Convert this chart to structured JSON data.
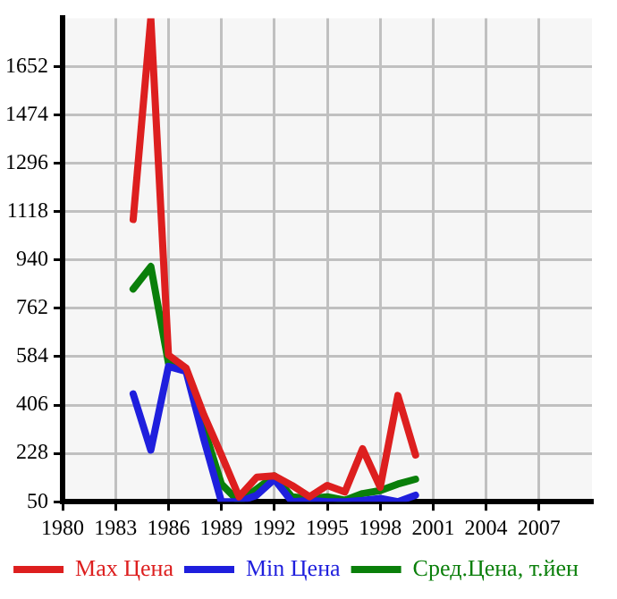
{
  "chart_data": {
    "type": "line",
    "x": [
      1984,
      1985,
      1986,
      1987,
      1988,
      1989,
      1990,
      1991,
      1992,
      1993,
      1994,
      1995,
      1996,
      1997,
      1998,
      1999,
      2000
    ],
    "series": [
      {
        "name": "Max Цена",
        "color": "#dd1f1f",
        "values": [
          1089,
          1830,
          590,
          542,
          370,
          222,
          68,
          140,
          145,
          110,
          68,
          110,
          86,
          245,
          103,
          441,
          222
        ]
      },
      {
        "name": "Min Цена",
        "color": "#1f1fdd",
        "values": [
          447,
          240,
          548,
          530,
          281,
          50,
          50,
          74,
          133,
          50,
          55,
          50,
          50,
          55,
          62,
          50,
          74
        ]
      },
      {
        "name": "Сред.Цена, т.йен",
        "color": "#0a7f0a",
        "values": [
          833,
          916,
          560,
          536,
          323,
          115,
          50,
          97,
          145,
          68,
          62,
          68,
          56,
          80,
          91,
          115,
          133
        ]
      }
    ],
    "xlim": [
      1980,
      2010
    ],
    "xticks": [
      1980,
      1983,
      1986,
      1989,
      1992,
      1995,
      1998,
      2001,
      2004,
      2007
    ],
    "ylim": [
      50,
      1830
    ],
    "yticks": [
      50,
      228,
      406,
      584,
      762,
      940,
      1118,
      1296,
      1474,
      1652
    ],
    "grid": true,
    "legend": "bottom",
    "marker": "none",
    "line_style": "solid"
  }
}
